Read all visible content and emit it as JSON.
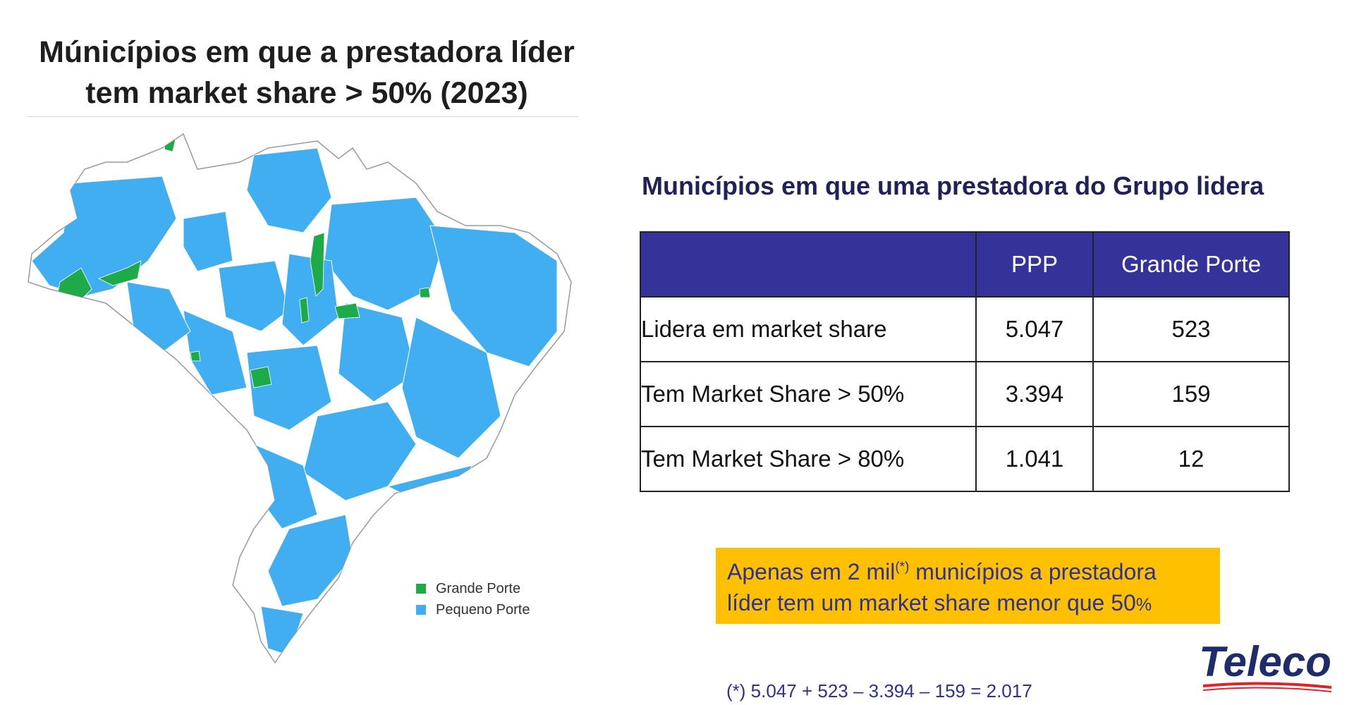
{
  "map_panel": {
    "title_line1": "Múnicípios em que a prestadora líder",
    "title_line2": "tem market share > 50% (2023)",
    "legend": [
      {
        "label": "Grande Porte",
        "color": "#1faa4a"
      },
      {
        "label": "Pequeno Porte",
        "color": "#40aef0"
      }
    ]
  },
  "table_section": {
    "title": "Municípios em que uma prestadora do Grupo lidera",
    "headers": [
      "",
      "PPP",
      "Grande Porte"
    ],
    "rows": [
      {
        "label": "Lidera em market share",
        "ppp": "5.047",
        "grande_porte": "523"
      },
      {
        "label": "Tem Market Share > 50%",
        "ppp": "3.394",
        "grande_porte": "159"
      },
      {
        "label": "Tem Market Share > 80%",
        "ppp": "1.041",
        "grande_porte": "12"
      }
    ],
    "header_color": "#333399"
  },
  "callout": {
    "text_before": "Apenas em 2 mil",
    "superscript": "(*)",
    "text_after": " municípios a prestadora",
    "line2": "líder tem um market share menor que 50",
    "pct": "%",
    "background": "#ffc000"
  },
  "footnote": "(*) 5.047 + 523 – 3.394 – 159 = 2.017",
  "logo": {
    "text": "Teleco",
    "color": "#1f2c6b",
    "accent": "#d9262c"
  }
}
